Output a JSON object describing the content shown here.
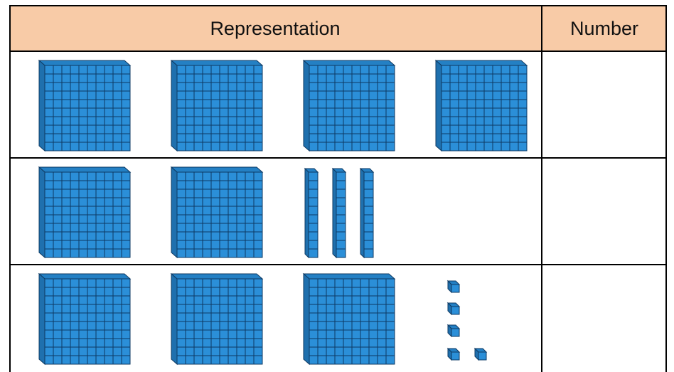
{
  "table": {
    "headers": [
      "Representation",
      "Number"
    ]
  }
}
